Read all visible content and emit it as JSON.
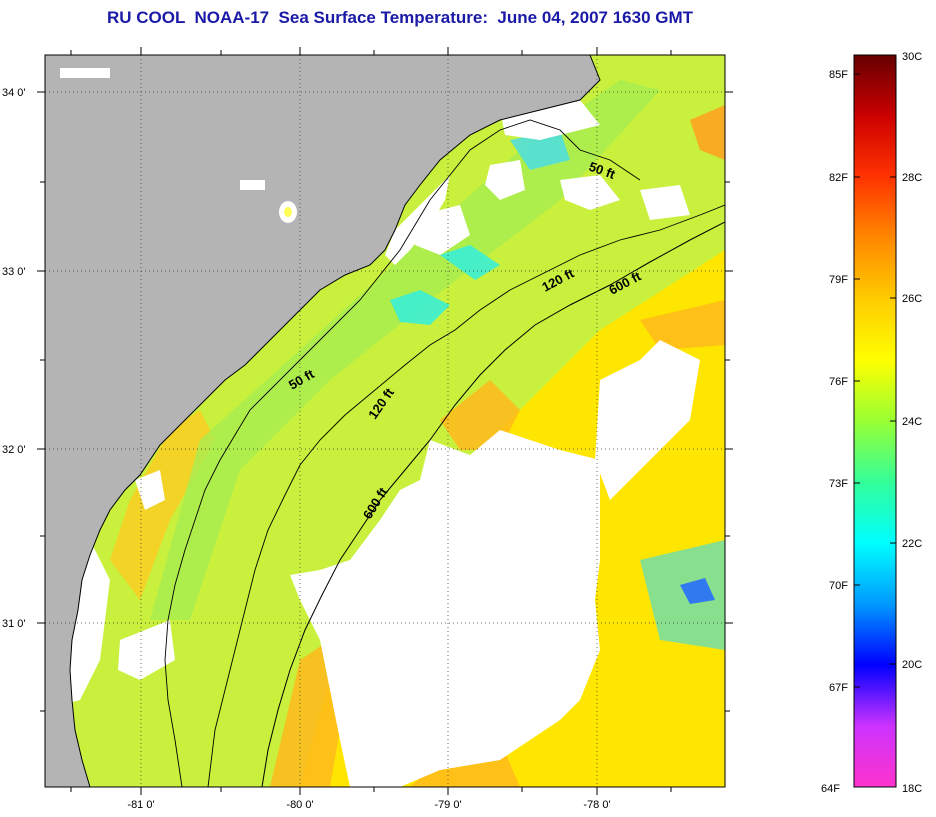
{
  "title": "RU COOL  NOAA-17  Sea Surface Temperature:  June 04, 2007 1630 GMT",
  "axes": {
    "lon_labels": [
      "-81 0'",
      "-80 0'",
      "-79 0'",
      "-78 0'"
    ],
    "lat_labels": [
      "34 0'",
      "33 0'",
      "32 0'",
      "31 0'"
    ]
  },
  "contours": {
    "labels": [
      "50 ft",
      "120 ft",
      "600 ft",
      "50 ft",
      "120 ft",
      "600 ft"
    ]
  },
  "colorbar": {
    "fahrenheit": [
      "85F",
      "82F",
      "79F",
      "76F",
      "73F",
      "70F",
      "67F",
      "64F"
    ],
    "celsius": [
      "30C",
      "28C",
      "26C",
      "24C",
      "22C",
      "20C",
      "18C"
    ],
    "colors": [
      "#ff33cc",
      "#cc33ff",
      "#0000ff",
      "#0099ff",
      "#00ffff",
      "#33ff99",
      "#99ff33",
      "#ffff00",
      "#ffcc00",
      "#ff8800",
      "#ff3300",
      "#cc0000",
      "#660000"
    ]
  },
  "colors": {
    "land": "#b4b4b4",
    "cloud": "#ffffff",
    "ocean_base": "#c8f03c",
    "title": "#1a1aa6"
  }
}
